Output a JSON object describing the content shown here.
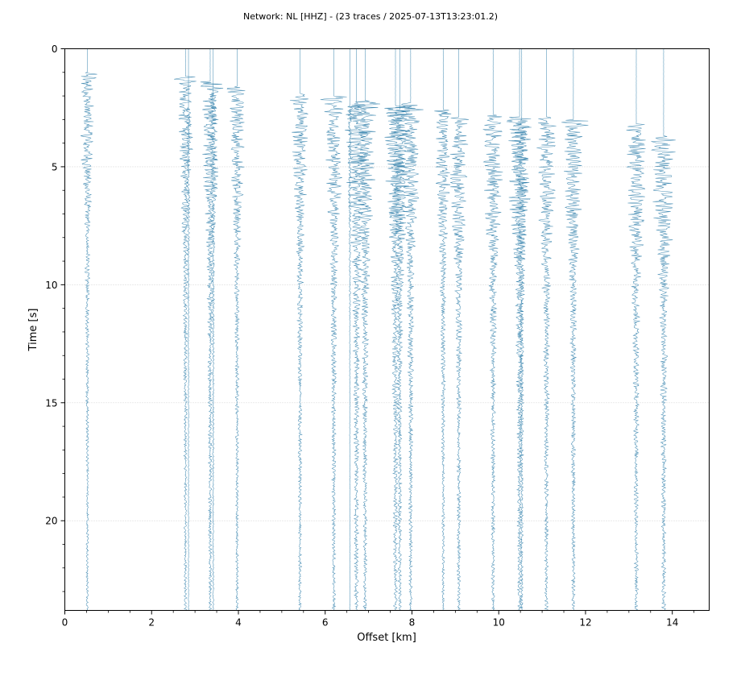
{
  "chart_data": {
    "type": "line",
    "title": "Network: NL [HHZ] - (23 traces / 2025-07-13T13:23:01.2)",
    "xlabel": "Offset [km]",
    "ylabel": "Time [s]",
    "xlim": [
      0,
      14.85
    ],
    "ylim": [
      23.8,
      0
    ],
    "y_inverted": true,
    "x_ticks": [
      0,
      2,
      4,
      6,
      8,
      10,
      12,
      14
    ],
    "y_ticks": [
      0,
      5,
      10,
      15,
      20
    ],
    "grid": "horizontal-dotted",
    "trace_color": "#2a7ba8",
    "traces": [
      {
        "offset": 0.52,
        "onset": 1.0,
        "amp": 0.18,
        "end": 23.8
      },
      {
        "offset": 2.78,
        "onset": 1.2,
        "amp": 0.2,
        "end": 23.8
      },
      {
        "offset": 2.85,
        "onset": 2.5,
        "amp": 0.05,
        "end": 23.8
      },
      {
        "offset": 3.35,
        "onset": 1.4,
        "amp": 0.24,
        "end": 23.8
      },
      {
        "offset": 3.42,
        "onset": 2.0,
        "amp": 0.1,
        "end": 23.8
      },
      {
        "offset": 3.97,
        "onset": 1.6,
        "amp": 0.2,
        "end": 23.8
      },
      {
        "offset": 5.42,
        "onset": 1.9,
        "amp": 0.22,
        "end": 23.8
      },
      {
        "offset": 6.2,
        "onset": 2.0,
        "amp": 0.25,
        "end": 23.8
      },
      {
        "offset": 6.57,
        "onset": 2.4,
        "amp": 0.05,
        "end": 23.8
      },
      {
        "offset": 6.72,
        "onset": 2.3,
        "amp": 0.3,
        "end": 23.8
      },
      {
        "offset": 6.92,
        "onset": 2.2,
        "amp": 0.28,
        "end": 23.8
      },
      {
        "offset": 7.62,
        "onset": 2.4,
        "amp": 0.3,
        "end": 23.8
      },
      {
        "offset": 7.72,
        "onset": 2.6,
        "amp": 0.25,
        "end": 23.8
      },
      {
        "offset": 7.97,
        "onset": 2.3,
        "amp": 0.26,
        "end": 23.8
      },
      {
        "offset": 8.72,
        "onset": 2.6,
        "amp": 0.2,
        "end": 23.8
      },
      {
        "offset": 9.08,
        "onset": 2.9,
        "amp": 0.24,
        "end": 23.8
      },
      {
        "offset": 9.87,
        "onset": 2.8,
        "amp": 0.26,
        "end": 23.8
      },
      {
        "offset": 10.48,
        "onset": 2.9,
        "amp": 0.3,
        "end": 23.8
      },
      {
        "offset": 10.53,
        "onset": 3.0,
        "amp": 0.2,
        "end": 23.8
      },
      {
        "offset": 11.1,
        "onset": 2.9,
        "amp": 0.26,
        "end": 23.8
      },
      {
        "offset": 11.72,
        "onset": 3.0,
        "amp": 0.26,
        "end": 23.8
      },
      {
        "offset": 13.17,
        "onset": 3.2,
        "amp": 0.28,
        "end": 23.8
      },
      {
        "offset": 13.8,
        "onset": 3.7,
        "amp": 0.3,
        "end": 23.8
      }
    ]
  }
}
